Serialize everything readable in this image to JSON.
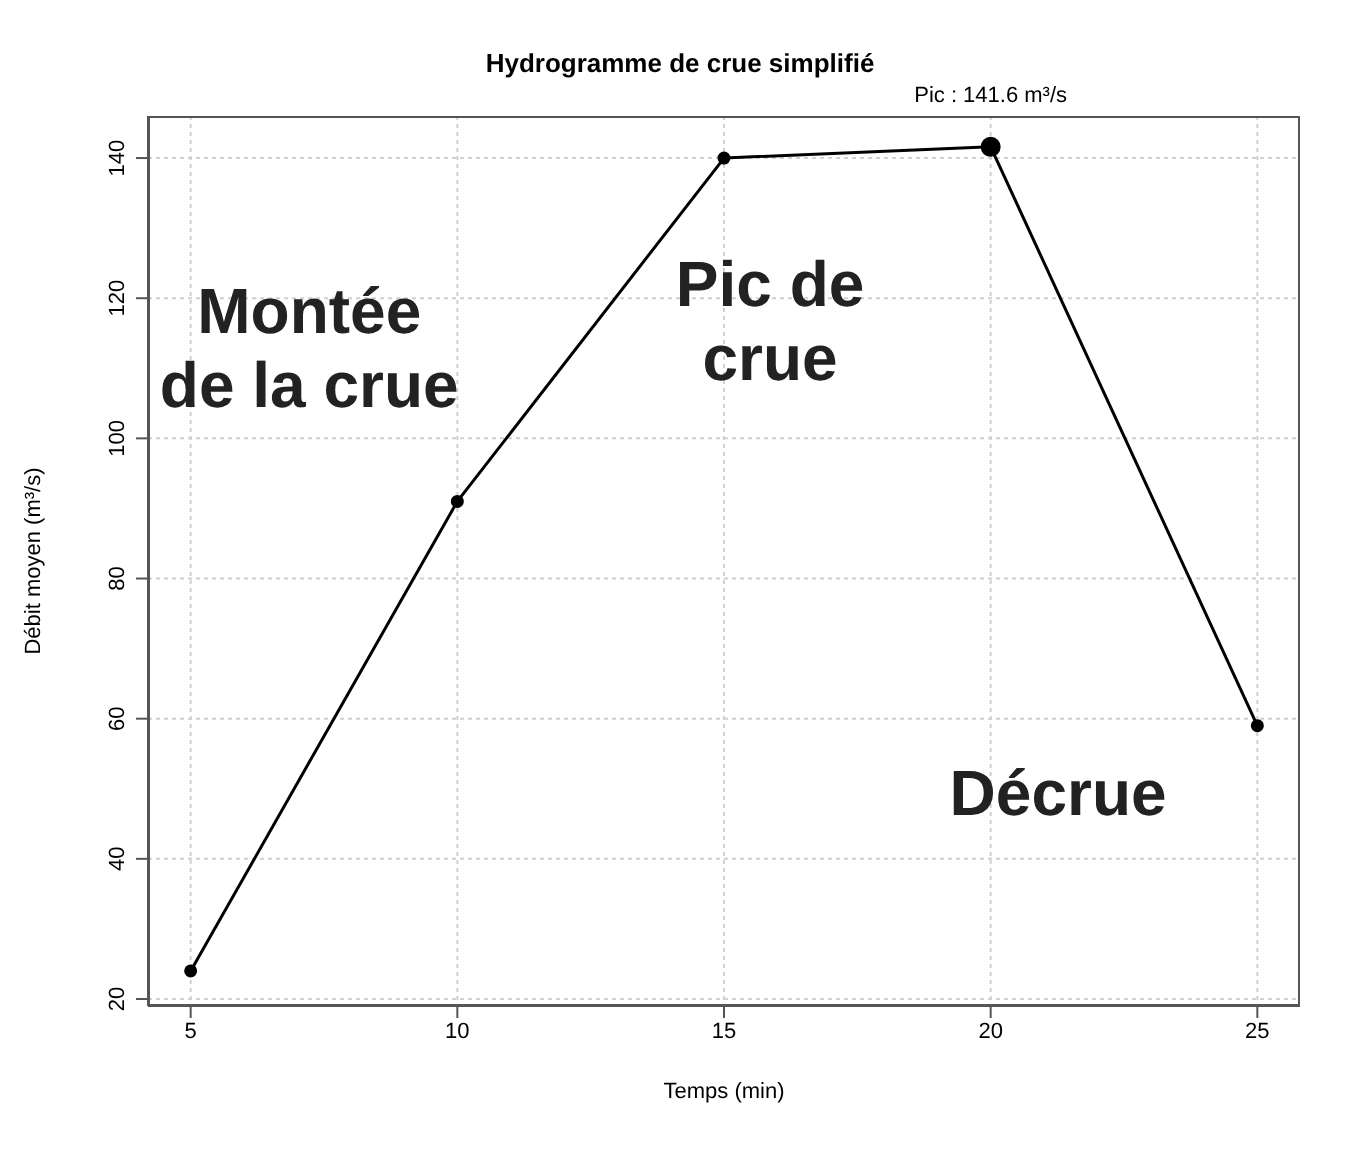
{
  "chart_data": {
    "type": "line",
    "title": "Hydrogramme de crue simplifié",
    "xlabel": "Temps (min)",
    "ylabel": "Débit moyen (m³/s)",
    "x": [
      5,
      10,
      15,
      20,
      25
    ],
    "series": [
      {
        "color": "#000000",
        "values": [
          24,
          91,
          140,
          141.6,
          59
        ]
      }
    ],
    "xlim": [
      4.2,
      25.8
    ],
    "xticks": [
      5,
      10,
      15,
      20,
      25
    ],
    "ylim": [
      19,
      146
    ],
    "yticks": [
      20,
      40,
      60,
      80,
      100,
      120,
      140
    ],
    "grid": true,
    "legend": false,
    "marker": "circle",
    "line_style": "solid",
    "annotations": [
      {
        "text": "Pic : 141.6 m³/s",
        "x": 20,
        "y": 141.6
      },
      "Montée\nde la crue",
      "Pic de\ncrue",
      "Décrue"
    ]
  }
}
